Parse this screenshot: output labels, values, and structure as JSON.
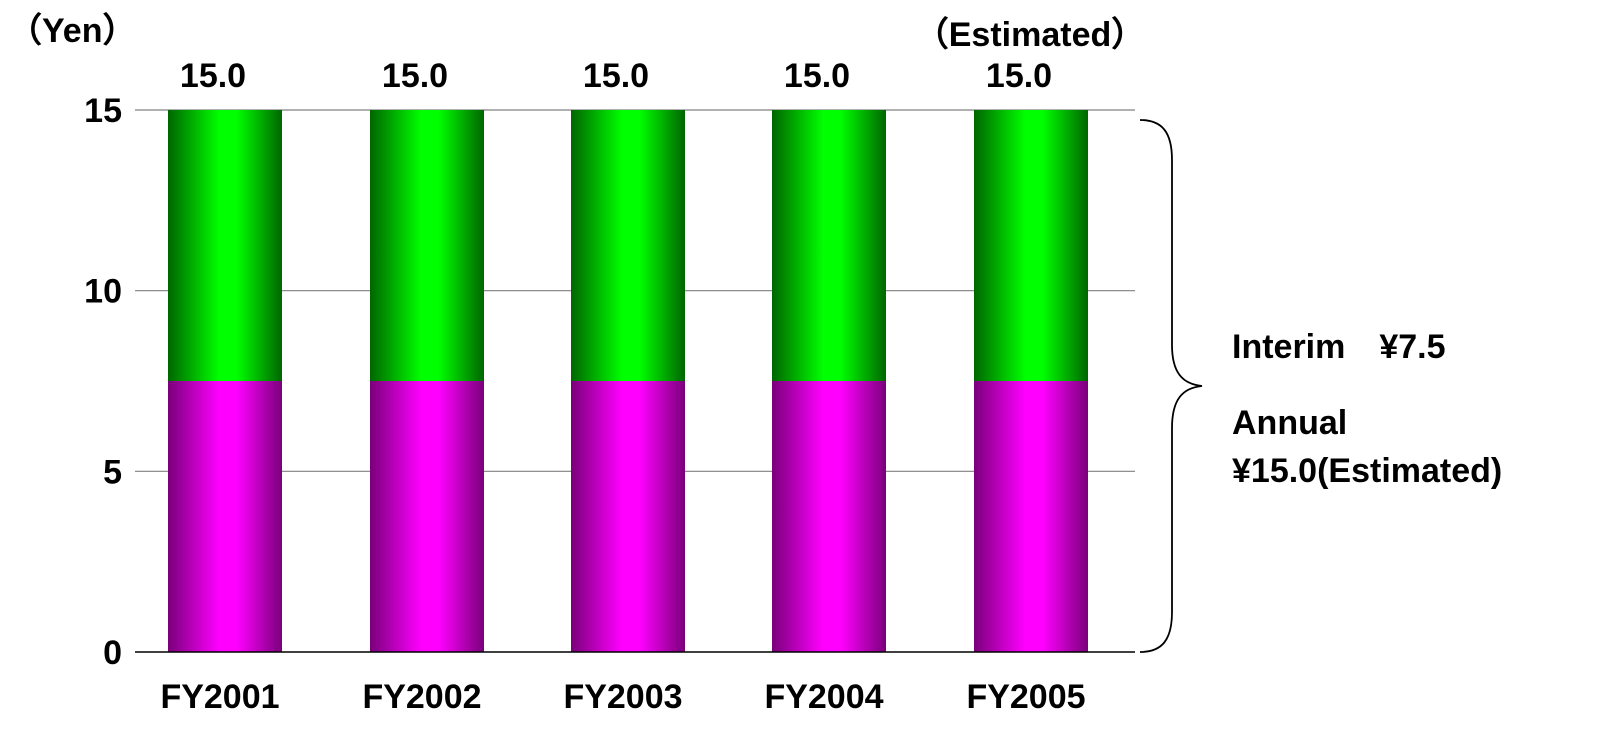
{
  "chart_data": {
    "type": "bar",
    "stacked": true,
    "unit_label": "（Yen）",
    "estimated_label": "（Estimated）",
    "categories": [
      "FY2001",
      "FY2002",
      "FY2003",
      "FY2004",
      "FY2005"
    ],
    "series": [
      {
        "values": [
          7.5,
          7.5,
          7.5,
          7.5,
          7.5
        ],
        "color": "#ff00ff",
        "color_dark": "#7a007a"
      },
      {
        "values": [
          7.5,
          7.5,
          7.5,
          7.5,
          7.5
        ],
        "color": "#00ff00",
        "color_dark": "#006600"
      }
    ],
    "totals": [
      "15.0",
      "15.0",
      "15.0",
      "15.0",
      "15.0"
    ],
    "ylim": [
      0,
      15
    ],
    "yticks": [
      0,
      5,
      10,
      15
    ],
    "grid": true,
    "annotation": {
      "lines": [
        "Interim　¥7.5",
        "Annual",
        "¥15.0(Estimated)"
      ]
    }
  }
}
